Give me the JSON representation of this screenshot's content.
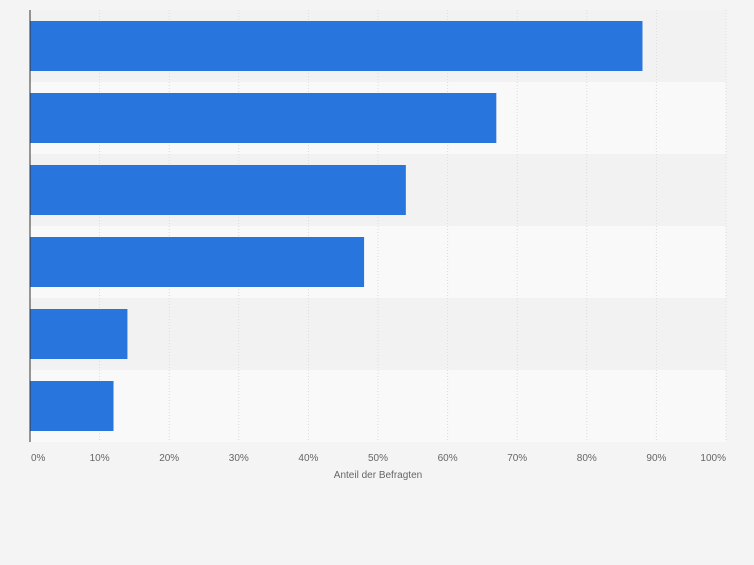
{
  "chart_data": {
    "type": "bar",
    "orientation": "horizontal",
    "categories": [
      "",
      "",
      "",
      "",
      "",
      ""
    ],
    "values": [
      88,
      67,
      54,
      48,
      14,
      12
    ],
    "xlim": [
      0,
      100
    ],
    "xticks": [
      "0%",
      "10%",
      "20%",
      "30%",
      "40%",
      "50%",
      "60%",
      "70%",
      "80%",
      "90%",
      "100%"
    ],
    "xlabel": "Anteil der Befragten",
    "ylabel": "",
    "title": "",
    "grid": true,
    "bar_color": "#2876dd",
    "band_colors": [
      "#f2f2f2",
      "#f9f9f9"
    ]
  }
}
